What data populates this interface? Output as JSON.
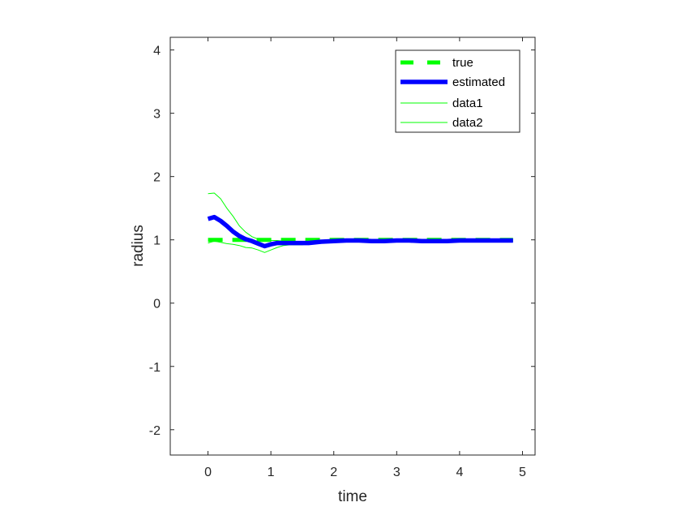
{
  "chart_data": {
    "type": "line",
    "xlabel": "time",
    "ylabel": "radius",
    "xlim": [
      -0.6,
      5.2
    ],
    "ylim": [
      -2.4,
      4.2
    ],
    "xticks": [
      0,
      1,
      2,
      3,
      4,
      5
    ],
    "yticks": [
      -2,
      -1,
      0,
      1,
      2,
      3,
      4
    ],
    "grid": false,
    "legend": "top-right",
    "series": [
      {
        "name": "true",
        "color": "#00ff00",
        "style": "dashed",
        "x": [
          0.0,
          4.85
        ],
        "y": [
          1.0,
          1.0
        ]
      },
      {
        "name": "estimated",
        "color": "#0000ff",
        "style": "solid-thick",
        "x": [
          0.0,
          0.1,
          0.2,
          0.3,
          0.4,
          0.5,
          0.6,
          0.7,
          0.8,
          0.9,
          1.0,
          1.1,
          1.2,
          1.3,
          1.4,
          1.5,
          1.6,
          1.8,
          2.0,
          2.2,
          2.4,
          2.6,
          2.8,
          3.0,
          3.2,
          3.4,
          3.6,
          3.8,
          4.0,
          4.2,
          4.4,
          4.6,
          4.85
        ],
        "y": [
          1.33,
          1.36,
          1.3,
          1.22,
          1.13,
          1.06,
          1.01,
          0.98,
          0.94,
          0.9,
          0.93,
          0.95,
          0.95,
          0.95,
          0.95,
          0.95,
          0.95,
          0.97,
          0.98,
          0.99,
          0.99,
          0.98,
          0.98,
          0.99,
          0.99,
          0.98,
          0.98,
          0.98,
          0.99,
          0.99,
          0.99,
          0.99,
          0.99
        ]
      },
      {
        "name": "data1",
        "color": "#00ff00",
        "style": "solid-thin",
        "x": [
          0.0,
          0.1,
          0.2,
          0.3,
          0.4,
          0.5,
          0.6,
          0.7,
          0.8,
          0.9,
          1.0,
          1.1,
          1.2,
          1.3,
          1.4,
          1.5,
          1.6,
          1.8,
          2.0,
          2.2,
          2.4,
          2.6,
          2.8,
          3.0,
          3.2,
          3.4,
          3.6,
          3.8,
          4.0,
          4.2,
          4.4,
          4.6,
          4.85
        ],
        "y": [
          1.73,
          1.74,
          1.65,
          1.5,
          1.37,
          1.22,
          1.12,
          1.05,
          1.01,
          0.98,
          0.99,
          0.99,
          0.98,
          0.97,
          0.97,
          0.97,
          0.97,
          0.99,
          1.0,
          1.0,
          1.0,
          1.0,
          1.0,
          1.0,
          1.0,
          1.0,
          1.0,
          1.0,
          1.0,
          1.0,
          1.0,
          1.0,
          1.0
        ]
      },
      {
        "name": "data2",
        "color": "#00ff00",
        "style": "solid-thin",
        "x": [
          0.0,
          0.1,
          0.2,
          0.3,
          0.4,
          0.5,
          0.6,
          0.7,
          0.8,
          0.9,
          1.0,
          1.1,
          1.2,
          1.3,
          1.4,
          1.5,
          1.6,
          1.8,
          2.0,
          2.2,
          2.4,
          2.6,
          2.8,
          3.0,
          3.2,
          3.4,
          3.6,
          3.8,
          4.0,
          4.2,
          4.4,
          4.6,
          4.85
        ],
        "y": [
          0.95,
          0.98,
          0.96,
          0.94,
          0.93,
          0.91,
          0.88,
          0.87,
          0.84,
          0.8,
          0.84,
          0.88,
          0.91,
          0.92,
          0.92,
          0.92,
          0.94,
          0.96,
          0.97,
          0.98,
          0.98,
          0.97,
          0.97,
          0.98,
          0.98,
          0.97,
          0.97,
          0.97,
          0.98,
          0.98,
          0.98,
          0.98,
          0.98
        ]
      }
    ]
  }
}
